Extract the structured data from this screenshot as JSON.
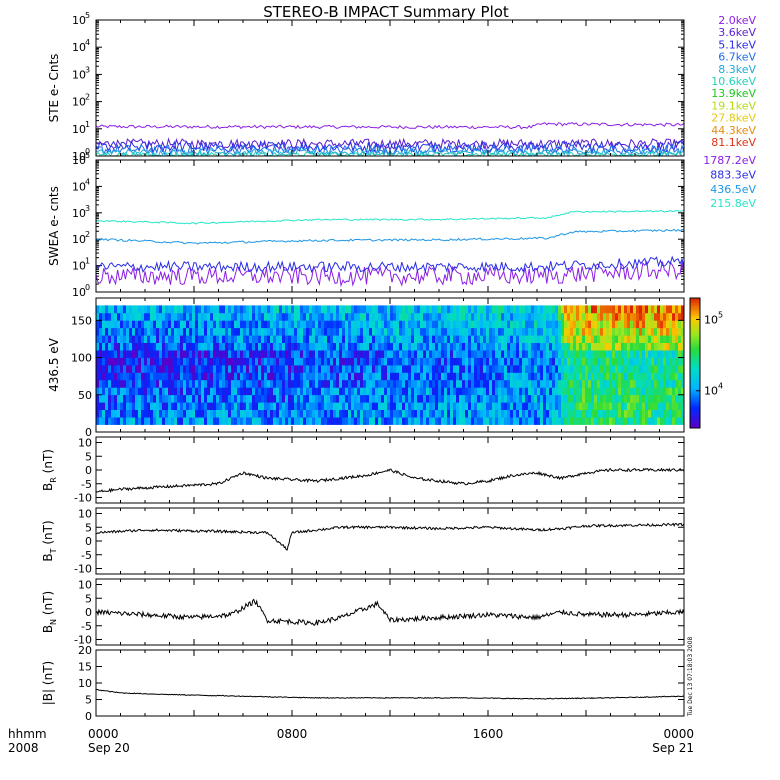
{
  "title": "STEREO-B IMPACT Summary Plot",
  "time_axis": {
    "label_lines": [
      "hhmm",
      "2008"
    ],
    "ticks": [
      {
        "top": "0000",
        "bottom": "Sep 20",
        "hour": 0
      },
      {
        "top": "0800",
        "bottom": "",
        "hour": 8
      },
      {
        "top": "1600",
        "bottom": "",
        "hour": 16
      },
      {
        "top": "0000",
        "bottom": "Sep 21",
        "hour": 24
      }
    ]
  },
  "timestamp": "Tue Dec 13 07:18:03 2008",
  "chart_data": [
    {
      "type": "line",
      "ylabel": "STE e- Cnts",
      "yscale": "log",
      "ylim": [
        1,
        100000
      ],
      "yticks": [
        {
          "exp": "0"
        },
        {
          "exp": "1"
        },
        {
          "exp": "2"
        },
        {
          "exp": "3"
        },
        {
          "exp": "4"
        },
        {
          "exp": "5"
        }
      ],
      "x": [
        0,
        24
      ],
      "series": [
        {
          "name": "2.0keV",
          "color": "#8c1ee6",
          "level": 12,
          "spread": 0.06,
          "trend": [
            [
              0,
              12
            ],
            [
              17.8,
              11.5
            ],
            [
              18.2,
              15
            ],
            [
              24,
              14
            ]
          ]
        },
        {
          "name": "3.6keV",
          "color": "#5a1ecc",
          "level": 2.8,
          "spread": 0.18
        },
        {
          "name": "5.1keV",
          "color": "#2a2ee6",
          "level": 2.2,
          "spread": 0.2
        },
        {
          "name": "6.7keV",
          "color": "#1e6ee6",
          "level": 1.7,
          "spread": 0.18
        },
        {
          "name": "8.3keV",
          "color": "#22a8dc",
          "level": 1.35,
          "spread": 0.12
        },
        {
          "name": "10.6keV",
          "color": "#24d2b8",
          "level": 1.15,
          "spread": 0.08
        },
        {
          "name": "13.9keV",
          "color": "#1ec81e",
          "level": 1.0,
          "spread": 0.0
        },
        {
          "name": "19.1keV",
          "color": "#b4dc14",
          "level": 1.0,
          "spread": 0.0
        },
        {
          "name": "27.8keV",
          "color": "#e6c814",
          "level": 1.0,
          "spread": 0.0
        },
        {
          "name": "44.3keV",
          "color": "#e68c14",
          "level": 1.0,
          "spread": 0.0
        },
        {
          "name": "81.1keV",
          "color": "#dc3214",
          "level": 1.0,
          "spread": 0.0
        }
      ]
    },
    {
      "type": "line",
      "ylabel": "SWEA e- cnts",
      "yscale": "log",
      "ylim": [
        1,
        100000
      ],
      "yticks": [
        {
          "exp": "0"
        },
        {
          "exp": "1"
        },
        {
          "exp": "2"
        },
        {
          "exp": "3"
        },
        {
          "exp": "4"
        },
        {
          "exp": "5"
        }
      ],
      "x": [
        0,
        24
      ],
      "series": [
        {
          "name": "1787.2eV",
          "color": "#8c1ee6",
          "level": 4,
          "spread": 0.35,
          "trend": [
            [
              0,
              4
            ],
            [
              18,
              4
            ],
            [
              24,
              7
            ]
          ]
        },
        {
          "name": "883.3eV",
          "color": "#2a2ee6",
          "level": 9,
          "spread": 0.2,
          "trend": [
            [
              0,
              9
            ],
            [
              18,
              9
            ],
            [
              24,
              14
            ]
          ]
        },
        {
          "name": "436.5eV",
          "color": "#1e96e6",
          "level": 100,
          "spread": 0.04,
          "trend": [
            [
              0,
              100
            ],
            [
              4,
              70
            ],
            [
              9,
              90
            ],
            [
              14,
              95
            ],
            [
              18.5,
              110
            ],
            [
              19.5,
              190
            ],
            [
              24,
              220
            ]
          ]
        },
        {
          "name": "215.8eV",
          "color": "#24e6c8",
          "level": 500,
          "spread": 0.03,
          "trend": [
            [
              0,
              500
            ],
            [
              4,
              400
            ],
            [
              9,
              550
            ],
            [
              14,
              560
            ],
            [
              18.5,
              650
            ],
            [
              19.5,
              1100
            ],
            [
              24,
              1150
            ]
          ]
        }
      ]
    },
    {
      "type": "heatmap",
      "ylabel": "436.5 eV",
      "ylim": [
        0,
        180
      ],
      "yticks": [
        "0",
        "50",
        "100",
        "150"
      ],
      "x": [
        0,
        24
      ],
      "colorbar": {
        "scale": "log",
        "range": [
          3000,
          200000
        ],
        "ticks": [
          {
            "value": 10000,
            "exp": "4"
          },
          {
            "value": 100000,
            "exp": "5"
          }
        ]
      },
      "pitch_angle_range": [
        10,
        170
      ],
      "levels": [
        {
          "x": 0,
          "low": 9000,
          "mid": 4500,
          "high": 11000
        },
        {
          "x": 8,
          "low": 9000,
          "mid": 5500,
          "high": 13000
        },
        {
          "x": 12,
          "low": 10000,
          "mid": 7000,
          "high": 14000
        },
        {
          "x": 18.8,
          "low": 11000,
          "mid": 9000,
          "high": 16000
        },
        {
          "x": 19.2,
          "low": 30000,
          "mid": 25000,
          "high": 110000
        },
        {
          "x": 24,
          "low": 30000,
          "mid": 25000,
          "high": 130000
        }
      ]
    },
    {
      "type": "line",
      "ylabel_main": "B",
      "ylabel_sub": "R",
      "ylabel_unit": "(nT)",
      "ylim": [
        -12,
        12
      ],
      "yticks": [
        "-10",
        "-5",
        "0",
        "5",
        "10"
      ],
      "x": [
        0,
        24
      ],
      "noise": 0.5,
      "series": [
        {
          "name": "",
          "color": "#000000",
          "values": [
            [
              0,
              -8
            ],
            [
              1,
              -7
            ],
            [
              3,
              -6
            ],
            [
              5,
              -5
            ],
            [
              6,
              -1
            ],
            [
              7,
              -3
            ],
            [
              9,
              -4
            ],
            [
              11,
              -2
            ],
            [
              12,
              0
            ],
            [
              13,
              -3
            ],
            [
              15,
              -5
            ],
            [
              16,
              -4
            ],
            [
              17,
              -2
            ],
            [
              18,
              -1
            ],
            [
              19,
              -3
            ],
            [
              20,
              -1
            ],
            [
              21,
              0
            ],
            [
              24,
              0
            ]
          ]
        }
      ]
    },
    {
      "type": "line",
      "ylabel_main": "B",
      "ylabel_sub": "T",
      "ylabel_unit": "(nT)",
      "ylim": [
        -12,
        12
      ],
      "yticks": [
        "-10",
        "-5",
        "0",
        "5",
        "10"
      ],
      "x": [
        0,
        24
      ],
      "noise": 0.45,
      "series": [
        {
          "name": "",
          "color": "#000000",
          "values": [
            [
              0,
              3
            ],
            [
              2,
              4
            ],
            [
              5,
              3.5
            ],
            [
              7,
              3
            ],
            [
              7.8,
              -3
            ],
            [
              8,
              3
            ],
            [
              10,
              5
            ],
            [
              12,
              5
            ],
            [
              14,
              4.5
            ],
            [
              16,
              5
            ],
            [
              18,
              4
            ],
            [
              19,
              4.5
            ],
            [
              20,
              5.5
            ],
            [
              24,
              6
            ]
          ]
        }
      ]
    },
    {
      "type": "line",
      "ylabel_main": "B",
      "ylabel_sub": "N",
      "ylabel_unit": "(nT)",
      "ylim": [
        -12,
        12
      ],
      "yticks": [
        "-10",
        "-5",
        "0",
        "5",
        "10"
      ],
      "x": [
        0,
        24
      ],
      "noise": 0.9,
      "series": [
        {
          "name": "",
          "color": "#000000",
          "values": [
            [
              0,
              0
            ],
            [
              2,
              -1
            ],
            [
              4,
              -2
            ],
            [
              5.5,
              -1
            ],
            [
              6.5,
              4
            ],
            [
              7,
              -3
            ],
            [
              9,
              -4
            ],
            [
              10,
              -2
            ],
            [
              11.5,
              3
            ],
            [
              12,
              -3
            ],
            [
              14,
              -2
            ],
            [
              16,
              -1
            ],
            [
              18,
              -2
            ],
            [
              19,
              0
            ],
            [
              20,
              -1
            ],
            [
              22,
              -1
            ],
            [
              24,
              0
            ]
          ]
        }
      ]
    },
    {
      "type": "line",
      "ylabel_main": "|B|",
      "ylabel_sub": "",
      "ylabel_unit": "(nT)",
      "ylim": [
        0,
        20
      ],
      "yticks": [
        "0",
        "5",
        "10",
        "15",
        "20"
      ],
      "x": [
        0,
        24
      ],
      "noise": 0.12,
      "series": [
        {
          "name": "",
          "color": "#000000",
          "values": [
            [
              0,
              8
            ],
            [
              1,
              7
            ],
            [
              3,
              6.5
            ],
            [
              6,
              6
            ],
            [
              9,
              5.5
            ],
            [
              12,
              5.5
            ],
            [
              15,
              5.5
            ],
            [
              18,
              5.2
            ],
            [
              21,
              5.5
            ],
            [
              24,
              6
            ]
          ]
        }
      ]
    }
  ]
}
